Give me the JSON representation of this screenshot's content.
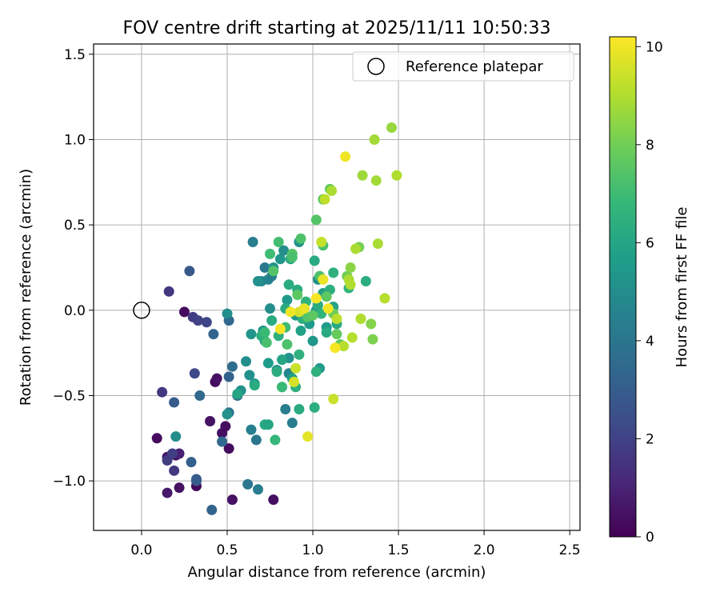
{
  "chart_data": {
    "type": "scatter",
    "title": "FOV centre drift starting at 2025/11/11 10:50:33",
    "xlabel": "Angular distance from reference (arcmin)",
    "ylabel": "Rotation from reference (arcmin)",
    "xlim": [
      -0.28,
      2.56
    ],
    "ylim": [
      -1.29,
      1.56
    ],
    "xticks": [
      0.0,
      0.5,
      1.0,
      1.5,
      2.0,
      2.5
    ],
    "xtick_labels": [
      "0.0",
      "0.5",
      "1.0",
      "1.5",
      "2.0",
      "2.5"
    ],
    "yticks": [
      -1.0,
      -0.5,
      0.0,
      0.5,
      1.0,
      1.5
    ],
    "ytick_labels": [
      "−1.0",
      "−0.5",
      "0.0",
      "0.5",
      "1.0",
      "1.5"
    ],
    "grid": true,
    "legend": {
      "position": "top-right",
      "entries": [
        {
          "label": "Reference platepar",
          "marker": "open-circle"
        }
      ]
    },
    "colorbar": {
      "label": "Hours from first FF file",
      "colormap": "viridis",
      "range": [
        0,
        10.2
      ],
      "ticks": [
        0,
        2,
        4,
        6,
        8,
        10
      ],
      "tick_labels": [
        "0",
        "2",
        "4",
        "6",
        "8",
        "10"
      ]
    },
    "reference_point": {
      "x": 0.0,
      "y": 0.0
    },
    "series": [
      {
        "color_by": "hours",
        "points": [
          {
            "x": 0.09,
            "y": -0.75,
            "c": 0.3
          },
          {
            "x": 0.15,
            "y": -0.86,
            "c": 0.6
          },
          {
            "x": 0.15,
            "y": -1.07,
            "c": 0.7
          },
          {
            "x": 0.2,
            "y": -0.85,
            "c": 0.4
          },
          {
            "x": 0.22,
            "y": -1.04,
            "c": 0.5
          },
          {
            "x": 0.25,
            "y": -0.01,
            "c": 0.3
          },
          {
            "x": 0.32,
            "y": -1.03,
            "c": 0.2
          },
          {
            "x": 0.4,
            "y": -0.65,
            "c": 0.5
          },
          {
            "x": 0.43,
            "y": -0.42,
            "c": 0.3
          },
          {
            "x": 0.47,
            "y": -0.72,
            "c": 0.4
          },
          {
            "x": 0.49,
            "y": -0.68,
            "c": 0.4
          },
          {
            "x": 0.51,
            "y": -0.81,
            "c": 0.3
          },
          {
            "x": 0.53,
            "y": -1.11,
            "c": 0.5
          },
          {
            "x": 0.77,
            "y": -1.11,
            "c": 0.4
          },
          {
            "x": 0.44,
            "y": -0.4,
            "c": 0.5
          },
          {
            "x": 0.22,
            "y": -0.84,
            "c": 0.9
          },
          {
            "x": 0.12,
            "y": -0.48,
            "c": 1.6
          },
          {
            "x": 0.16,
            "y": 0.11,
            "c": 1.6
          },
          {
            "x": 0.15,
            "y": -0.88,
            "c": 1.8
          },
          {
            "x": 0.18,
            "y": -0.84,
            "c": 1.9
          },
          {
            "x": 0.19,
            "y": -0.94,
            "c": 1.6
          },
          {
            "x": 0.3,
            "y": -0.04,
            "c": 1.8
          },
          {
            "x": 0.33,
            "y": -0.06,
            "c": 2.0
          },
          {
            "x": 0.31,
            "y": -0.37,
            "c": 2.2
          },
          {
            "x": 0.38,
            "y": -0.07,
            "c": 2.1
          },
          {
            "x": 0.32,
            "y": -1.0,
            "c": 2.6
          },
          {
            "x": 0.28,
            "y": 0.23,
            "c": 2.8
          },
          {
            "x": 0.19,
            "y": -0.54,
            "c": 2.9
          },
          {
            "x": 0.29,
            "y": -0.89,
            "c": 3.1
          },
          {
            "x": 0.32,
            "y": -0.99,
            "c": 3.0
          },
          {
            "x": 0.34,
            "y": -0.5,
            "c": 3.4
          },
          {
            "x": 0.42,
            "y": -0.14,
            "c": 3.3
          },
          {
            "x": 0.41,
            "y": -1.17,
            "c": 3.3
          },
          {
            "x": 0.47,
            "y": -0.77,
            "c": 3.5
          },
          {
            "x": 0.51,
            "y": -0.39,
            "c": 3.2
          },
          {
            "x": 0.51,
            "y": -0.06,
            "c": 3.4
          },
          {
            "x": 0.51,
            "y": -0.6,
            "c": 3.8
          },
          {
            "x": 0.53,
            "y": -0.33,
            "c": 3.6
          },
          {
            "x": 0.56,
            "y": -0.5,
            "c": 3.8
          },
          {
            "x": 0.62,
            "y": -1.02,
            "c": 4.0
          },
          {
            "x": 0.64,
            "y": -0.7,
            "c": 4.4
          },
          {
            "x": 0.65,
            "y": 0.4,
            "c": 4.3
          },
          {
            "x": 0.67,
            "y": -0.76,
            "c": 4.0
          },
          {
            "x": 0.68,
            "y": -1.05,
            "c": 4.3
          },
          {
            "x": 0.7,
            "y": 0.17,
            "c": 4.8
          },
          {
            "x": 0.72,
            "y": 0.25,
            "c": 4.1
          },
          {
            "x": 0.74,
            "y": 0.18,
            "c": 4.6
          },
          {
            "x": 0.76,
            "y": 0.2,
            "c": 4.4
          },
          {
            "x": 0.84,
            "y": -0.58,
            "c": 4.3
          },
          {
            "x": 0.88,
            "y": -0.66,
            "c": 4.3
          },
          {
            "x": 0.86,
            "y": -0.37,
            "c": 4.7
          },
          {
            "x": 0.2,
            "y": -0.74,
            "c": 5.0
          },
          {
            "x": 0.5,
            "y": -0.02,
            "c": 5.0
          },
          {
            "x": 0.5,
            "y": -0.61,
            "c": 5.2
          },
          {
            "x": 0.58,
            "y": -0.47,
            "c": 5.2
          },
          {
            "x": 0.61,
            "y": -0.3,
            "c": 5.0
          },
          {
            "x": 0.63,
            "y": -0.38,
            "c": 5.1
          },
          {
            "x": 0.64,
            "y": -0.14,
            "c": 5.3
          },
          {
            "x": 0.66,
            "y": -0.43,
            "c": 5.4
          },
          {
            "x": 0.68,
            "y": 0.17,
            "c": 5.1
          },
          {
            "x": 0.71,
            "y": -0.12,
            "c": 5.4
          },
          {
            "x": 0.72,
            "y": -0.18,
            "c": 5.2
          },
          {
            "x": 0.74,
            "y": -0.31,
            "c": 5.6
          },
          {
            "x": 0.75,
            "y": 0.01,
            "c": 5.0
          },
          {
            "x": 0.77,
            "y": 0.25,
            "c": 5.3
          },
          {
            "x": 0.79,
            "y": -0.35,
            "c": 5.2
          },
          {
            "x": 0.81,
            "y": 0.3,
            "c": 5.4
          },
          {
            "x": 0.83,
            "y": 0.35,
            "c": 5.0
          },
          {
            "x": 0.85,
            "y": 0.06,
            "c": 5.5
          },
          {
            "x": 0.86,
            "y": -0.28,
            "c": 5.2
          },
          {
            "x": 0.88,
            "y": -0.4,
            "c": 5.7
          },
          {
            "x": 0.9,
            "y": -0.03,
            "c": 5.4
          },
          {
            "x": 0.92,
            "y": 0.4,
            "c": 5.3
          },
          {
            "x": 0.93,
            "y": -0.12,
            "c": 5.8
          },
          {
            "x": 0.95,
            "y": 0.01,
            "c": 5.6
          },
          {
            "x": 0.98,
            "y": -0.08,
            "c": 5.5
          },
          {
            "x": 1.0,
            "y": -0.18,
            "c": 5.4
          },
          {
            "x": 1.02,
            "y": 0.0,
            "c": 5.6
          },
          {
            "x": 1.03,
            "y": 0.18,
            "c": 5.2
          },
          {
            "x": 1.04,
            "y": -0.34,
            "c": 5.5
          },
          {
            "x": 1.06,
            "y": 0.1,
            "c": 5.8
          },
          {
            "x": 1.08,
            "y": -0.1,
            "c": 5.6
          },
          {
            "x": 1.12,
            "y": 0.02,
            "c": 5.9
          },
          {
            "x": 0.56,
            "y": -0.49,
            "c": 6.0
          },
          {
            "x": 0.66,
            "y": -0.44,
            "c": 6.2
          },
          {
            "x": 0.7,
            "y": -0.15,
            "c": 6.4
          },
          {
            "x": 0.72,
            "y": -0.67,
            "c": 6.1
          },
          {
            "x": 0.74,
            "y": -0.67,
            "c": 6.0
          },
          {
            "x": 0.76,
            "y": -0.06,
            "c": 6.2
          },
          {
            "x": 0.79,
            "y": -0.36,
            "c": 6.3
          },
          {
            "x": 0.8,
            "y": -0.15,
            "c": 6.5
          },
          {
            "x": 0.82,
            "y": -0.29,
            "c": 6.0
          },
          {
            "x": 0.82,
            "y": -0.45,
            "c": 6.6
          },
          {
            "x": 0.84,
            "y": 0.01,
            "c": 6.2
          },
          {
            "x": 0.86,
            "y": 0.15,
            "c": 6.3
          },
          {
            "x": 0.87,
            "y": 0.3,
            "c": 6.1
          },
          {
            "x": 0.9,
            "y": -0.45,
            "c": 6.4
          },
          {
            "x": 0.91,
            "y": 0.12,
            "c": 6.2
          },
          {
            "x": 0.92,
            "y": -0.26,
            "c": 6.5
          },
          {
            "x": 0.92,
            "y": -0.58,
            "c": 6.2
          },
          {
            "x": 0.94,
            "y": -0.05,
            "c": 6.4
          },
          {
            "x": 0.96,
            "y": 0.05,
            "c": 6.6
          },
          {
            "x": 1.01,
            "y": 0.29,
            "c": 6.2
          },
          {
            "x": 1.01,
            "y": -0.57,
            "c": 6.4
          },
          {
            "x": 1.02,
            "y": -0.36,
            "c": 6.5
          },
          {
            "x": 1.03,
            "y": 0.03,
            "c": 6.3
          },
          {
            "x": 1.05,
            "y": -0.02,
            "c": 6.6
          },
          {
            "x": 1.08,
            "y": -0.13,
            "c": 6.2
          },
          {
            "x": 1.1,
            "y": 0.12,
            "c": 6.4
          },
          {
            "x": 1.12,
            "y": 0.22,
            "c": 6.5
          },
          {
            "x": 1.14,
            "y": -0.08,
            "c": 6.2
          },
          {
            "x": 1.21,
            "y": 0.13,
            "c": 6.6
          },
          {
            "x": 1.31,
            "y": 0.17,
            "c": 6.4
          },
          {
            "x": 0.82,
            "y": -0.45,
            "c": 6.9
          },
          {
            "x": 0.84,
            "y": -0.1,
            "c": 7.0
          },
          {
            "x": 0.78,
            "y": -0.76,
            "c": 6.8
          },
          {
            "x": 0.72,
            "y": -0.13,
            "c": 6.9
          },
          {
            "x": 0.75,
            "y": 0.33,
            "c": 7.0
          },
          {
            "x": 0.73,
            "y": -0.19,
            "c": 7.2
          },
          {
            "x": 0.77,
            "y": 0.23,
            "c": 7.4
          },
          {
            "x": 0.8,
            "y": 0.4,
            "c": 7.1
          },
          {
            "x": 0.85,
            "y": -0.2,
            "c": 7.3
          },
          {
            "x": 0.88,
            "y": 0.33,
            "c": 7.4
          },
          {
            "x": 0.88,
            "y": 0.31,
            "c": 7.2
          },
          {
            "x": 0.91,
            "y": 0.09,
            "c": 7.6
          },
          {
            "x": 0.93,
            "y": 0.42,
            "c": 7.3
          },
          {
            "x": 0.97,
            "y": -0.04,
            "c": 7.4
          },
          {
            "x": 1.0,
            "y": -0.03,
            "c": 7.6
          },
          {
            "x": 1.02,
            "y": 0.53,
            "c": 7.4
          },
          {
            "x": 1.04,
            "y": 0.2,
            "c": 7.3
          },
          {
            "x": 1.06,
            "y": 0.65,
            "c": 7.5
          },
          {
            "x": 1.06,
            "y": 0.38,
            "c": 7.2
          },
          {
            "x": 1.08,
            "y": 0.08,
            "c": 7.6
          },
          {
            "x": 1.1,
            "y": 0.71,
            "c": 7.8
          },
          {
            "x": 1.12,
            "y": -0.02,
            "c": 7.9
          },
          {
            "x": 1.14,
            "y": -0.14,
            "c": 7.8
          },
          {
            "x": 1.16,
            "y": -0.2,
            "c": 7.7
          },
          {
            "x": 1.2,
            "y": 0.2,
            "c": 8.0
          },
          {
            "x": 1.27,
            "y": 0.37,
            "c": 8.1
          },
          {
            "x": 1.34,
            "y": -0.08,
            "c": 8.3
          },
          {
            "x": 1.35,
            "y": -0.17,
            "c": 8.2
          },
          {
            "x": 1.22,
            "y": 0.25,
            "c": 8.4
          },
          {
            "x": 1.36,
            "y": 1.0,
            "c": 8.8
          },
          {
            "x": 1.37,
            "y": 0.76,
            "c": 8.8
          },
          {
            "x": 1.29,
            "y": 0.79,
            "c": 8.7
          },
          {
            "x": 1.46,
            "y": 1.07,
            "c": 8.6
          },
          {
            "x": 1.38,
            "y": 0.39,
            "c": 8.9
          },
          {
            "x": 1.25,
            "y": 0.36,
            "c": 8.9
          },
          {
            "x": 1.21,
            "y": 0.18,
            "c": 8.9
          },
          {
            "x": 1.22,
            "y": 0.15,
            "c": 9.0
          },
          {
            "x": 1.28,
            "y": -0.05,
            "c": 9.0
          },
          {
            "x": 1.23,
            "y": -0.16,
            "c": 9.1
          },
          {
            "x": 1.18,
            "y": -0.21,
            "c": 9.1
          },
          {
            "x": 1.14,
            "y": -0.05,
            "c": 9.2
          },
          {
            "x": 1.07,
            "y": 0.65,
            "c": 9.2
          },
          {
            "x": 1.11,
            "y": 0.7,
            "c": 8.9
          },
          {
            "x": 1.05,
            "y": 0.4,
            "c": 9.3
          },
          {
            "x": 1.42,
            "y": 0.07,
            "c": 9.1
          },
          {
            "x": 1.49,
            "y": 0.79,
            "c": 9.0
          },
          {
            "x": 1.12,
            "y": -0.52,
            "c": 9.4
          },
          {
            "x": 0.9,
            "y": -0.34,
            "c": 9.4
          },
          {
            "x": 0.89,
            "y": -0.42,
            "c": 9.6
          },
          {
            "x": 0.92,
            "y": -0.01,
            "c": 9.6
          },
          {
            "x": 0.95,
            "y": 0.01,
            "c": 9.9
          },
          {
            "x": 0.97,
            "y": -0.74,
            "c": 9.8
          },
          {
            "x": 1.06,
            "y": 0.18,
            "c": 9.9
          },
          {
            "x": 1.09,
            "y": 0.01,
            "c": 10.0
          },
          {
            "x": 1.13,
            "y": -0.22,
            "c": 10.1
          },
          {
            "x": 1.19,
            "y": 0.9,
            "c": 10.0
          },
          {
            "x": 0.81,
            "y": -0.11,
            "c": 10.1
          },
          {
            "x": 0.87,
            "y": -0.01,
            "c": 10.0
          },
          {
            "x": 1.02,
            "y": 0.07,
            "c": 10.1
          }
        ]
      }
    ]
  }
}
